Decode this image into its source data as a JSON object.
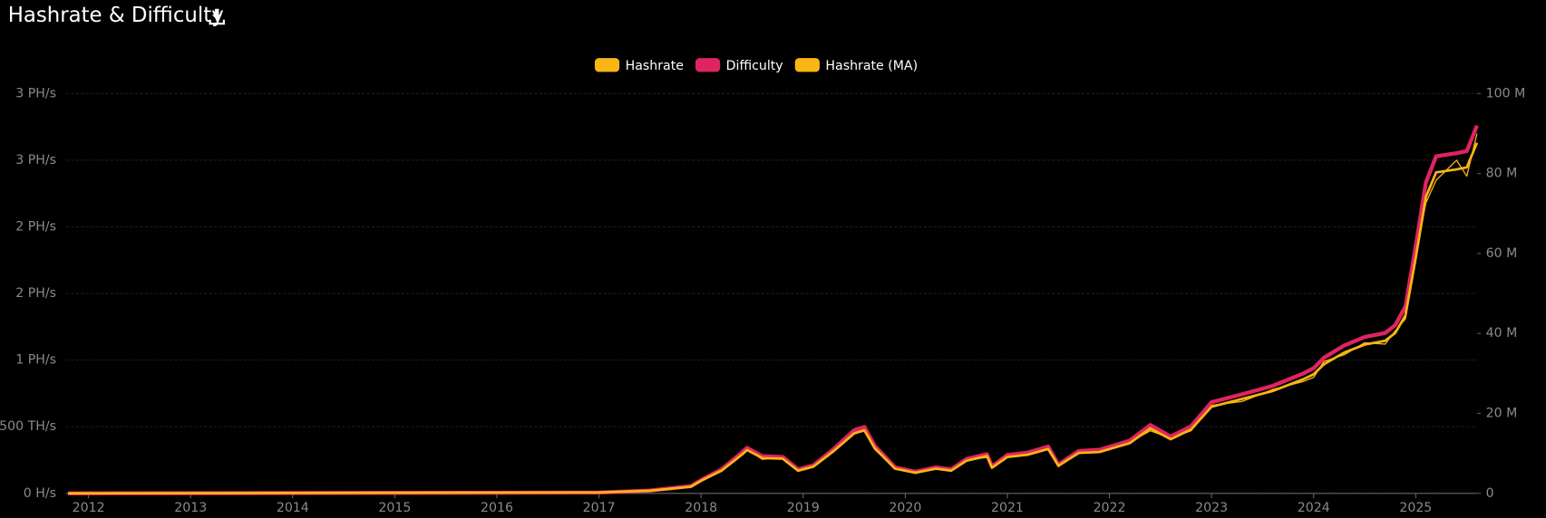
{
  "chart_data": {
    "type": "line",
    "title": "Hashrate & Difficulty",
    "x": [
      2011.8,
      2017.0,
      2017.5,
      2017.9,
      2018.0,
      2018.2,
      2018.4,
      2018.45,
      2018.6,
      2018.8,
      2018.95,
      2019.1,
      2019.3,
      2019.5,
      2019.6,
      2019.7,
      2019.9,
      2020.1,
      2020.3,
      2020.45,
      2020.6,
      2020.8,
      2020.85,
      2021.0,
      2021.2,
      2021.4,
      2021.5,
      2021.7,
      2021.9,
      2022.2,
      2022.4,
      2022.6,
      2022.8,
      2023.0,
      2023.3,
      2023.6,
      2023.9,
      2024.0,
      2024.1,
      2024.3,
      2024.5,
      2024.7,
      2024.8,
      2024.9,
      2025.0,
      2025.1,
      2025.2,
      2025.4,
      2025.5,
      2025.6
    ],
    "xlim": [
      2011.78,
      2025.6
    ],
    "xticks": [
      2012,
      2013,
      2014,
      2015,
      2016,
      2017,
      2018,
      2019,
      2020,
      2021,
      2022,
      2023,
      2024,
      2025
    ],
    "ylim": [
      0,
      3000
    ],
    "yticks": [
      {
        "value": 0,
        "label": "0 H/s"
      },
      {
        "value": 500,
        "label": "500 TH/s"
      },
      {
        "value": 1000,
        "label": "1 PH/s"
      },
      {
        "value": 1500,
        "label": "2 PH/s"
      },
      {
        "value": 2000,
        "label": "2 PH/s"
      },
      {
        "value": 2500,
        "label": "3 PH/s"
      },
      {
        "value": 3000,
        "label": "3 PH/s"
      }
    ],
    "y2lim": [
      0,
      100
    ],
    "y2ticks": [
      {
        "value": 0,
        "label": "0"
      },
      {
        "value": 20,
        "label": "20 M"
      },
      {
        "value": 40,
        "label": "40 M"
      },
      {
        "value": 60,
        "label": "60 M"
      },
      {
        "value": 80,
        "label": "80 M"
      },
      {
        "value": 100,
        "label": "100 M"
      }
    ],
    "grid": true,
    "series": [
      {
        "name": "Hashrate",
        "color": "#fbb514",
        "values": [
          0,
          8,
          22,
          48,
          98,
          165,
          300,
          330,
          255,
          270,
          165,
          205,
          325,
          460,
          465,
          330,
          190,
          150,
          190,
          175,
          250,
          270,
          200,
          280,
          285,
          340,
          200,
          310,
          305,
          385,
          470,
          415,
          470,
          660,
          690,
          780,
          840,
          870,
          990,
          1040,
          1130,
          1120,
          1220,
          1310,
          1800,
          2180,
          2350,
          2500,
          2380,
          2700
        ]
      },
      {
        "name": "Difficulty",
        "color": "#df245f",
        "axis": "y2",
        "values": [
          0,
          0.2,
          0.7,
          1.8,
          3.3,
          6.0,
          10.2,
          11.4,
          9.3,
          9.1,
          6.0,
          7.0,
          11.1,
          15.8,
          16.6,
          11.9,
          6.5,
          5.4,
          6.5,
          6.0,
          8.6,
          9.8,
          6.7,
          9.6,
          10.2,
          11.7,
          7.2,
          10.6,
          10.9,
          13.2,
          17.1,
          14.2,
          16.8,
          22.8,
          24.8,
          26.9,
          30.0,
          31.3,
          33.9,
          37.0,
          39.1,
          40.1,
          42.1,
          46.8,
          61.8,
          77.8,
          84.3,
          85.1,
          85.6,
          92.0
        ]
      },
      {
        "name": "Hashrate (MA)",
        "color": "#fbb514",
        "values": [
          0,
          7,
          20,
          50,
          95,
          170,
          290,
          325,
          265,
          260,
          170,
          200,
          318,
          450,
          473,
          340,
          185,
          155,
          185,
          170,
          245,
          280,
          192,
          273,
          290,
          333,
          207,
          303,
          310,
          377,
          488,
          406,
          480,
          650,
          709,
          768,
          857,
          894,
          968,
          1057,
          1116,
          1145,
          1204,
          1337,
          1766,
          2224,
          2409,
          2431,
          2446,
          2630
        ]
      }
    ]
  }
}
